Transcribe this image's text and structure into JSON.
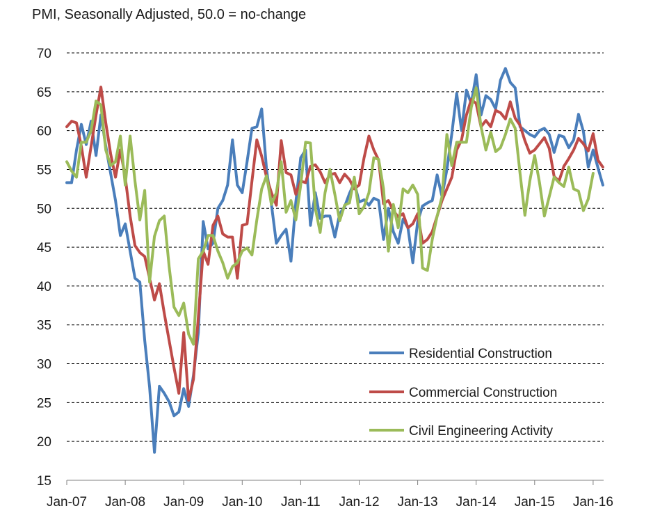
{
  "chart_data": {
    "type": "line",
    "title": "PMI, Seasonally Adjusted, 50.0 = no-change",
    "xlabel": "",
    "ylabel": "",
    "ylim": [
      15,
      70
    ],
    "yticks": [
      15,
      20,
      25,
      30,
      35,
      40,
      45,
      50,
      55,
      60,
      65,
      70
    ],
    "xticks": [
      "Jan-07",
      "Jan-08",
      "Jan-09",
      "Jan-10",
      "Jan-11",
      "Jan-12",
      "Jan-13",
      "Jan-14",
      "Jan-15",
      "Jan-16"
    ],
    "x_start": "Jan-07",
    "x_end": "Mar-16",
    "grid": "horizontal dashed",
    "legend_position": "bottom-right",
    "series": [
      {
        "name": "Residential Construction",
        "color": "#4a7ebb",
        "values": [
          53.3,
          53.3,
          57.5,
          60.8,
          58.2,
          61.2,
          56.8,
          62,
          58,
          54.5,
          51,
          46.5,
          48,
          44.5,
          41,
          40.5,
          33,
          27,
          18.6,
          27.1,
          26.2,
          25.1,
          23.3,
          23.8,
          26.8,
          24.5,
          28.5,
          34,
          48.3,
          44.8,
          45.5,
          50,
          51,
          53,
          58.8,
          53,
          52,
          56,
          60.3,
          60.5,
          62.8,
          55,
          50.5,
          45.5,
          46.5,
          47.3,
          43.2,
          50.8,
          56.5,
          57.5,
          47.8,
          52,
          48.7,
          49,
          49,
          46.3,
          49.3,
          50.2,
          51.9,
          53.3,
          50.8,
          51.1,
          50.4,
          51.3,
          51,
          46,
          50,
          47,
          45.5,
          48.6,
          47.5,
          43,
          48.3,
          50.3,
          50.7,
          51,
          54.3,
          51.5,
          55,
          59.6,
          64.8,
          60,
          65.2,
          63.5,
          67.2,
          62,
          64.5,
          64,
          62.8,
          66.5,
          68,
          66.2,
          65.5,
          60.5,
          60,
          59.5,
          59.2,
          60,
          60.3,
          59.5,
          57.2,
          59.4,
          59.2,
          57.8,
          58.8,
          62.1,
          59.9,
          55.3,
          57.5,
          55.2,
          53
        ]
      },
      {
        "name": "Commercial Construction",
        "color": "#be4b48",
        "values": [
          60.5,
          61.2,
          61,
          58,
          54,
          58,
          62,
          65.6,
          61,
          57,
          54,
          57.5,
          54,
          49,
          45.2,
          44.3,
          43.8,
          41,
          38.2,
          40.3,
          36.5,
          33,
          29.5,
          26.2,
          34,
          25.3,
          28,
          36,
          44.5,
          42.8,
          47.8,
          49,
          46.7,
          46.3,
          46.3,
          41,
          47.8,
          48,
          53.5,
          58.8,
          56.7,
          54,
          52,
          50.4,
          58.7,
          54.6,
          54.3,
          51.8,
          53.5,
          53.3,
          55.4,
          55.6,
          54.7,
          53.3,
          54.3,
          54.5,
          53.3,
          54.4,
          53.7,
          52.5,
          53,
          56.5,
          59.3,
          57.5,
          56.2,
          50.6,
          51,
          49.7,
          48.9,
          49.3,
          47.5,
          48,
          49.3,
          45.5,
          46,
          47,
          49,
          51,
          52.5,
          54,
          57.5,
          58.8,
          62,
          64,
          63.5,
          60.5,
          61.3,
          60.5,
          62.6,
          62.3,
          61.5,
          63.7,
          61.6,
          60.7,
          58.7,
          57.1,
          57.5,
          58.3,
          59.1,
          57.7,
          54.1,
          53.5,
          55.4,
          56.4,
          57.5,
          59,
          58.3,
          57.4,
          59.6,
          56.2,
          55.3
        ]
      },
      {
        "name": "Civil Engineering Activity",
        "color": "#9bbb59",
        "values": [
          56,
          54.8,
          54,
          58.5,
          58.5,
          60,
          63.8,
          63.3,
          57.5,
          55.5,
          56,
          59.3,
          53,
          59.3,
          53.5,
          48.5,
          52.3,
          40.5,
          46.4,
          48.4,
          49,
          42.5,
          37.3,
          36.2,
          37.8,
          33.8,
          32.5,
          43.5,
          44.5,
          46.5,
          46.5,
          44.5,
          43,
          41,
          42.5,
          43,
          44.5,
          44.9,
          44,
          48.5,
          52.5,
          54.2,
          50.5,
          52,
          56,
          49.5,
          51,
          48.5,
          53,
          58.5,
          58.4,
          50,
          46.9,
          52,
          55,
          51.8,
          48.4,
          50.4,
          50.7,
          54,
          49.3,
          50.2,
          52,
          56.5,
          56.3,
          52.5,
          44.5,
          50.5,
          47.5,
          52.5,
          52,
          53,
          51.8,
          42.3,
          42,
          46,
          49,
          51.5,
          59.5,
          55.5,
          58.5,
          58.5,
          58.5,
          63,
          65.5,
          60.5,
          57.5,
          59.8,
          57.3,
          57.8,
          59.5,
          61.5,
          60.3,
          54.5,
          49.1,
          53.5,
          56.8,
          53.3,
          49,
          51.5,
          54,
          53.3,
          52.8,
          55.3,
          52.5,
          52.2,
          49.7,
          51.2,
          54.5
        ]
      }
    ]
  }
}
